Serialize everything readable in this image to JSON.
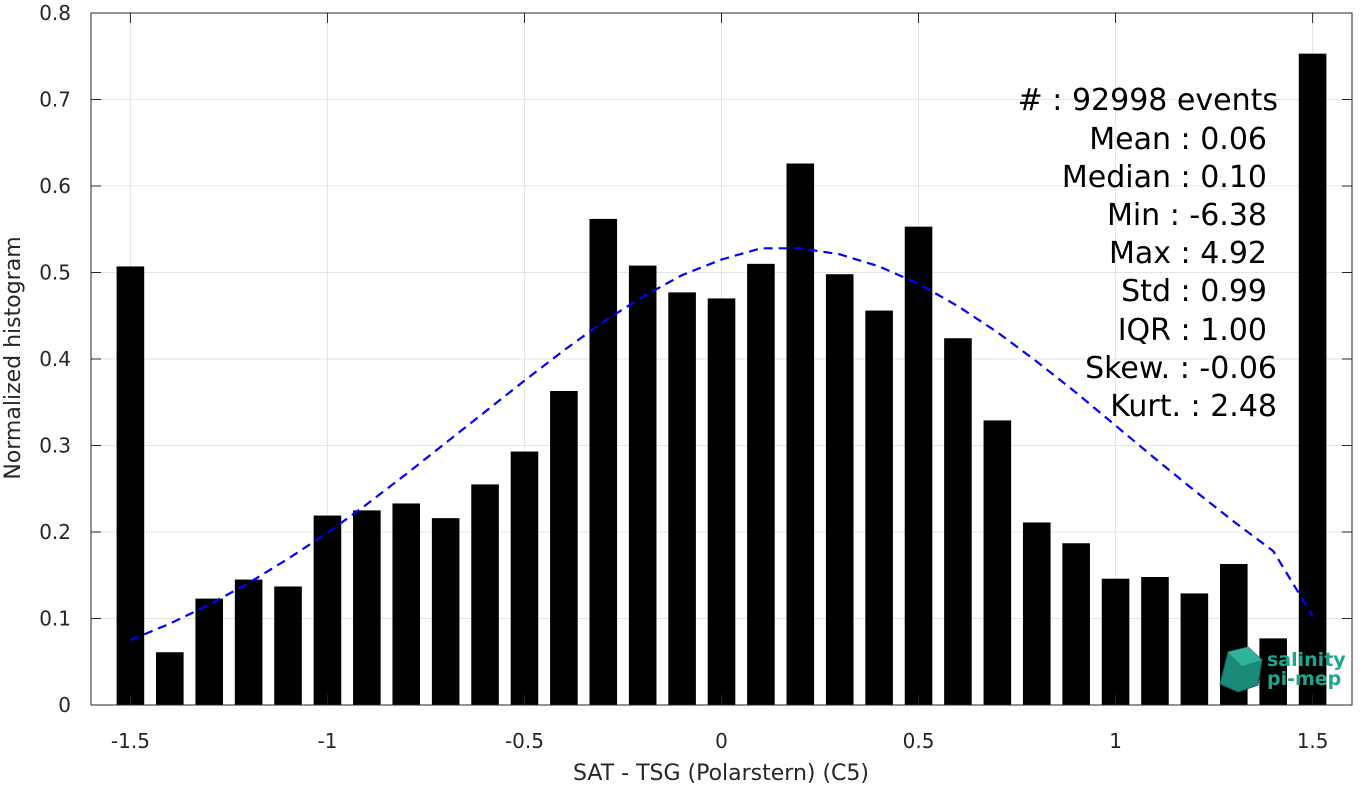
{
  "chart_data": {
    "type": "bar",
    "xlabel": "SAT - TSG (Polarstern) (C5)",
    "ylabel": "Normalized histogram",
    "xlim": [
      -1.6,
      1.6
    ],
    "ylim": [
      0,
      0.8
    ],
    "xticks": [
      -1.5,
      -1,
      -0.5,
      0,
      0.5,
      1,
      1.5
    ],
    "xtick_labels": [
      "-1.5",
      "-1",
      "-0.5",
      "0",
      "0.5",
      "1",
      "1.5"
    ],
    "yticks": [
      0,
      0.1,
      0.2,
      0.3,
      0.4,
      0.5,
      0.6,
      0.7,
      0.8
    ],
    "ytick_labels": [
      "0",
      "0.1",
      "0.2",
      "0.3",
      "0.4",
      "0.5",
      "0.6",
      "0.7",
      "0.8"
    ],
    "grid": true,
    "bar_color": "#000000",
    "fit_color": "#0000ff",
    "series": [
      {
        "type": "bar",
        "x": [
          -1.5,
          -1.4,
          -1.3,
          -1.2,
          -1.1,
          -1.0,
          -0.9,
          -0.8,
          -0.7,
          -0.6,
          -0.5,
          -0.4,
          -0.3,
          -0.2,
          -0.1,
          0.0,
          0.1,
          0.2,
          0.3,
          0.4,
          0.5,
          0.6,
          0.7,
          0.8,
          0.9,
          1.0,
          1.1,
          1.2,
          1.3,
          1.4,
          1.5
        ],
        "values": [
          0.507,
          0.061,
          0.123,
          0.145,
          0.137,
          0.219,
          0.225,
          0.233,
          0.216,
          0.255,
          0.293,
          0.363,
          0.562,
          0.508,
          0.477,
          0.47,
          0.51,
          0.626,
          0.498,
          0.456,
          0.553,
          0.424,
          0.329,
          0.211,
          0.187,
          0.146,
          0.148,
          0.129,
          0.163,
          0.077,
          0.753
        ]
      },
      {
        "type": "line",
        "style": "dashed",
        "x": [
          -1.5,
          -1.4,
          -1.3,
          -1.2,
          -1.1,
          -1.0,
          -0.9,
          -0.8,
          -0.7,
          -0.6,
          -0.5,
          -0.4,
          -0.3,
          -0.2,
          -0.1,
          0.0,
          0.1,
          0.2,
          0.3,
          0.4,
          0.5,
          0.6,
          0.7,
          0.8,
          0.9,
          1.0,
          1.1,
          1.2,
          1.3,
          1.4,
          1.5
        ],
        "values": [
          0.075,
          0.094,
          0.116,
          0.141,
          0.169,
          0.199,
          0.232,
          0.267,
          0.303,
          0.339,
          0.375,
          0.41,
          0.443,
          0.472,
          0.497,
          0.515,
          0.528,
          0.528,
          0.521,
          0.507,
          0.487,
          0.461,
          0.431,
          0.397,
          0.361,
          0.323,
          0.285,
          0.248,
          0.212,
          0.178,
          0.103
        ]
      }
    ],
    "annotations": [
      "#  : 92998 events",
      "Mean : 0.06",
      "Median : 0.10",
      "Min : -6.38",
      "Max : 4.92",
      "Std : 0.99",
      "IQR : 1.00",
      "Skew. : -0.06",
      "Kurt. : 2.48"
    ],
    "logo_text": [
      "salinity",
      "pi-mep"
    ]
  }
}
